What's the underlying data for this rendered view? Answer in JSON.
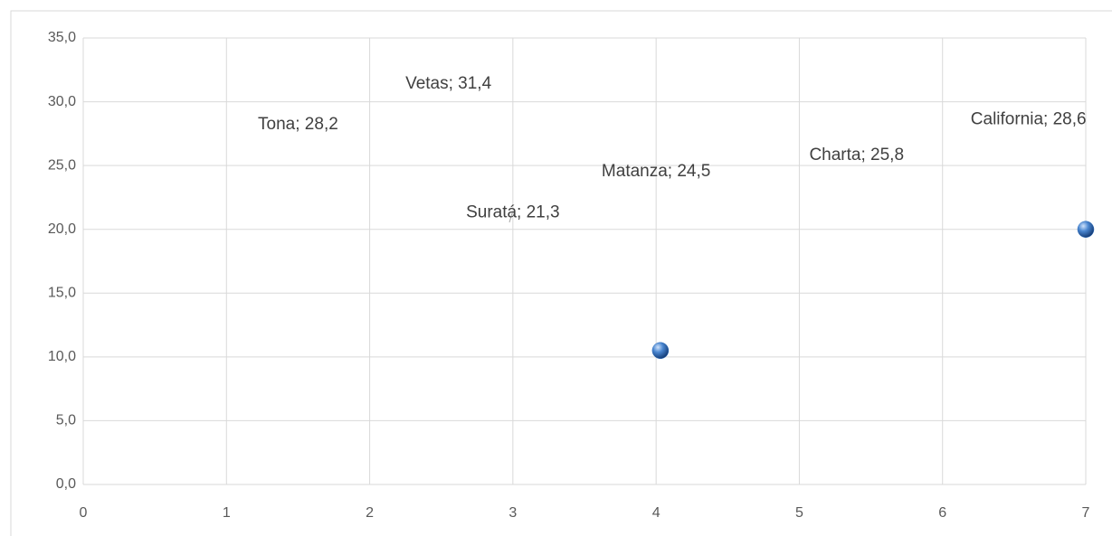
{
  "chart_data": {
    "type": "scatter",
    "xlim": [
      0,
      7
    ],
    "xticks": [
      0,
      1,
      2,
      3,
      4,
      5,
      6,
      7
    ],
    "ylim": [
      0,
      35
    ],
    "yticks": [
      {
        "value": 0,
        "label": "0,0"
      },
      {
        "value": 5,
        "label": "5,0"
      },
      {
        "value": 10,
        "label": "10,0"
      },
      {
        "value": 15,
        "label": "15,0"
      },
      {
        "value": 20,
        "label": "20,0"
      },
      {
        "value": 25,
        "label": "25,0"
      },
      {
        "value": 30,
        "label": "30,0"
      },
      {
        "value": 35,
        "label": "35,0"
      }
    ],
    "grid": true,
    "series": [
      {
        "x": [
          1.5,
          2.55,
          6.6,
          4.0,
          5.4,
          3.0
        ],
        "values": [
          28.2,
          31.4,
          28.6,
          24.5,
          25.8,
          21.3
        ],
        "value_labels": [
          "Tona; 28,2",
          "Vetas; 31,4",
          "California; 28,6",
          "Matanza; 24,5",
          "Charta; 25,8",
          "Suratá; 21,3"
        ]
      },
      {
        "color": "#2e6fc0",
        "x": [
          4.03,
          7.0
        ],
        "values": [
          10.5,
          20.0
        ]
      }
    ]
  }
}
